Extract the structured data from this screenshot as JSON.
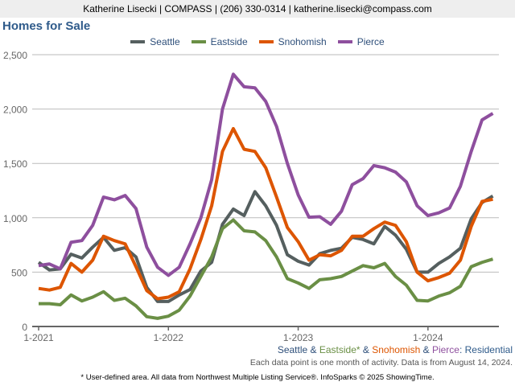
{
  "header": {
    "contact": "Katherine Lisecki | COMPASS | (206) 330-0314 | katherine.lisecki@compass.com"
  },
  "chart_data": {
    "type": "line",
    "title": "Homes for Sale",
    "ylim": [
      0,
      2500
    ],
    "yticks": [
      0,
      500,
      1000,
      1500,
      2000,
      2500
    ],
    "ytick_labels": [
      "0",
      "500",
      "1,000",
      "1,500",
      "2,000",
      "2,500"
    ],
    "xtick_labels": [
      "1-2021",
      "1-2022",
      "1-2023",
      "1-2024"
    ],
    "xtick_index": [
      0,
      12,
      24,
      36
    ],
    "x_start": "2021-01",
    "x_end": "2024-07",
    "grid": true,
    "legend": "top",
    "series": [
      {
        "name": "Seattle",
        "color": "#555f5f",
        "values": [
          590,
          520,
          530,
          665,
          630,
          730,
          820,
          700,
          725,
          640,
          360,
          230,
          230,
          290,
          340,
          510,
          590,
          940,
          1080,
          1020,
          1240,
          1110,
          930,
          660,
          600,
          565,
          670,
          700,
          720,
          820,
          800,
          760,
          920,
          840,
          710,
          500,
          500,
          580,
          640,
          720,
          990,
          1140,
          1200
        ]
      },
      {
        "name": "Eastside",
        "color": "#6a8f45",
        "values": [
          210,
          210,
          200,
          290,
          235,
          270,
          320,
          240,
          260,
          190,
          90,
          75,
          95,
          150,
          280,
          460,
          640,
          900,
          980,
          880,
          870,
          790,
          640,
          440,
          400,
          350,
          430,
          440,
          460,
          510,
          560,
          540,
          580,
          460,
          380,
          240,
          235,
          280,
          310,
          370,
          550,
          590,
          620
        ]
      },
      {
        "name": "Snohomish",
        "color": "#dd5500",
        "values": [
          350,
          335,
          360,
          580,
          500,
          610,
          830,
          790,
          760,
          550,
          330,
          255,
          270,
          320,
          530,
          800,
          1110,
          1610,
          1820,
          1630,
          1610,
          1460,
          1190,
          910,
          780,
          610,
          660,
          650,
          700,
          830,
          830,
          900,
          960,
          930,
          780,
          500,
          420,
          450,
          490,
          610,
          920,
          1150,
          1170
        ]
      },
      {
        "name": "Pierce",
        "color": "#8e4f9e",
        "values": [
          560,
          575,
          530,
          775,
          790,
          930,
          1190,
          1165,
          1205,
          1085,
          730,
          545,
          470,
          545,
          760,
          1000,
          1350,
          2000,
          2320,
          2205,
          2195,
          2070,
          1840,
          1500,
          1210,
          1005,
          1010,
          940,
          1060,
          1305,
          1360,
          1480,
          1460,
          1420,
          1330,
          1110,
          1020,
          1045,
          1090,
          1290,
          1610,
          1900,
          1960
        ]
      }
    ],
    "subtitle": {
      "parts": [
        "Seattle",
        " & ",
        "Eastside*",
        " & ",
        "Snohomish",
        " & ",
        "Pierce",
        ": Residential"
      ]
    },
    "note": "Each data point is one month of activity. Data is from August 14, 2024.",
    "footnote": "* User-defined area. All data from Northwest Multiple Listing Service®. InfoSparks © 2025 ShowingTime."
  }
}
